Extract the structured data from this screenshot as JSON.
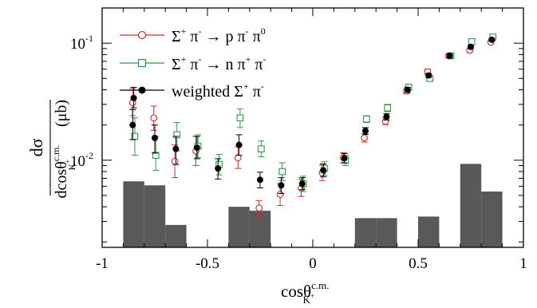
{
  "chart_data": {
    "type": "scatter",
    "xlim": [
      -1,
      1
    ],
    "ylim": [
      0.0018,
      0.2
    ],
    "yscale": "log",
    "xticks": [
      {
        "v": -1,
        "label": "-1"
      },
      {
        "v": -0.5,
        "label": "-0.5"
      },
      {
        "v": 0,
        "label": "0"
      },
      {
        "v": 0.5,
        "label": "0.5"
      },
      {
        "v": 1,
        "label": "1"
      }
    ],
    "yticks": [
      {
        "v": 0.01,
        "base": "10",
        "exp": "-2"
      },
      {
        "v": 0.1,
        "base": "10",
        "exp": "-1"
      }
    ],
    "xlabel": {
      "main": "cosθ",
      "sup": "c.m.",
      "sub": "K",
      "subsup": "+"
    },
    "ylabel": {
      "num": "dσ",
      "den": "dcosθ",
      "sup": "c.m.",
      "sub": "K",
      "subsup": "+",
      "unit": "(μb)"
    },
    "legend_position": "top-right",
    "colors": {
      "red": "#d42a2a",
      "green": "#2a9a4a",
      "black": "#000000",
      "bars": "#595959"
    },
    "series": [
      {
        "name": "Σ⁺ π⁻ → p π⁻ π⁰",
        "legend": {
          "a": "Σ",
          "a_sup": "+",
          "b": " π",
          "b_sup": "-",
          "c": " → p π",
          "c_sup": "-",
          "d": " π",
          "d_sup": "0"
        },
        "marker": "open-circle",
        "color": "#d42a2a",
        "points": [
          {
            "x": -0.855,
            "y": 0.031,
            "lo": 0.024,
            "hi": 0.041
          },
          {
            "x": -0.755,
            "y": 0.023,
            "lo": 0.018,
            "hi": 0.029
          },
          {
            "x": -0.655,
            "y": 0.0098,
            "lo": 0.0071,
            "hi": 0.0135
          },
          {
            "x": -0.555,
            "y": 0.012,
            "lo": 0.009,
            "hi": 0.016
          },
          {
            "x": -0.355,
            "y": 0.0105,
            "lo": 0.0085,
            "hi": 0.013
          },
          {
            "x": -0.255,
            "y": 0.0039,
            "lo": 0.0033,
            "hi": 0.0045
          },
          {
            "x": -0.155,
            "y": 0.0051,
            "lo": 0.0041,
            "hi": 0.0063
          },
          {
            "x": -0.055,
            "y": 0.0058,
            "lo": 0.0049,
            "hi": 0.0069
          },
          {
            "x": 0.045,
            "y": 0.0078,
            "lo": 0.0067,
            "hi": 0.0091
          },
          {
            "x": 0.145,
            "y": 0.0105,
            "lo": 0.0095,
            "hi": 0.0116
          },
          {
            "x": 0.245,
            "y": 0.0155,
            "lo": 0.0143,
            "hi": 0.0168
          },
          {
            "x": 0.345,
            "y": 0.0215,
            "lo": 0.0201,
            "hi": 0.023
          },
          {
            "x": 0.445,
            "y": 0.039,
            "lo": 0.037,
            "hi": 0.041
          },
          {
            "x": 0.545,
            "y": 0.057,
            "lo": 0.054,
            "hi": 0.06
          },
          {
            "x": 0.645,
            "y": 0.078,
            "lo": 0.075,
            "hi": 0.081
          },
          {
            "x": 0.745,
            "y": 0.087,
            "lo": 0.084,
            "hi": 0.09
          },
          {
            "x": 0.845,
            "y": 0.102,
            "lo": 0.099,
            "hi": 0.105
          }
        ]
      },
      {
        "name": "Σ⁺ π⁻ → n π⁺ π⁻",
        "legend": {
          "a": "Σ",
          "a_sup": "+",
          "b": " π",
          "b_sup": "-",
          "c": " → n π",
          "c_sup": "+",
          "d": " π",
          "d_sup": "-"
        },
        "marker": "open-square",
        "color": "#2a9a4a",
        "points": [
          {
            "x": -0.845,
            "y": 0.016,
            "lo": 0.011,
            "hi": 0.023
          },
          {
            "x": -0.745,
            "y": 0.011,
            "lo": 0.0082,
            "hi": 0.016
          },
          {
            "x": -0.645,
            "y": 0.0165,
            "lo": 0.012,
            "hi": 0.021
          },
          {
            "x": -0.545,
            "y": 0.0132,
            "lo": 0.0105,
            "hi": 0.0165
          },
          {
            "x": -0.445,
            "y": 0.0092,
            "lo": 0.0075,
            "hi": 0.0112
          },
          {
            "x": -0.345,
            "y": 0.023,
            "lo": 0.019,
            "hi": 0.0275
          },
          {
            "x": -0.245,
            "y": 0.0125,
            "lo": 0.0107,
            "hi": 0.0146
          },
          {
            "x": -0.145,
            "y": 0.008,
            "lo": 0.0067,
            "hi": 0.0095
          },
          {
            "x": -0.045,
            "y": 0.0063,
            "lo": 0.0054,
            "hi": 0.0073
          },
          {
            "x": 0.055,
            "y": 0.0085,
            "lo": 0.0074,
            "hi": 0.0097
          },
          {
            "x": 0.155,
            "y": 0.01,
            "lo": 0.009,
            "hi": 0.011
          },
          {
            "x": 0.255,
            "y": 0.0225,
            "lo": 0.021,
            "hi": 0.024
          },
          {
            "x": 0.355,
            "y": 0.028,
            "lo": 0.026,
            "hi": 0.03
          },
          {
            "x": 0.455,
            "y": 0.042,
            "lo": 0.04,
            "hi": 0.044
          },
          {
            "x": 0.555,
            "y": 0.05,
            "lo": 0.048,
            "hi": 0.052
          },
          {
            "x": 0.655,
            "y": 0.078,
            "lo": 0.075,
            "hi": 0.081
          },
          {
            "x": 0.755,
            "y": 0.103,
            "lo": 0.1,
            "hi": 0.106
          },
          {
            "x": 0.855,
            "y": 0.113,
            "lo": 0.11,
            "hi": 0.116
          }
        ]
      },
      {
        "name": "weighted Σ⁺ π⁻",
        "legend": {
          "a": "weighted Σ",
          "a_sup": "+",
          "b": " π",
          "b_sup": "-",
          "c": "",
          "c_sup": "",
          "d": "",
          "d_sup": ""
        },
        "marker": "filled-circle",
        "color": "#000000",
        "points": [
          {
            "x": -0.85,
            "y": 0.034,
            "lo": 0.028,
            "hi": 0.042
          },
          {
            "x": -0.855,
            "y": 0.02,
            "lo": 0.015,
            "hi": 0.027
          },
          {
            "x": -0.75,
            "y": 0.0155,
            "lo": 0.0115,
            "hi": 0.02
          },
          {
            "x": -0.65,
            "y": 0.0125,
            "lo": 0.0092,
            "hi": 0.016
          },
          {
            "x": -0.55,
            "y": 0.0128,
            "lo": 0.0103,
            "hi": 0.016
          },
          {
            "x": -0.45,
            "y": 0.0085,
            "lo": 0.0069,
            "hi": 0.0103
          },
          {
            "x": -0.35,
            "y": 0.0135,
            "lo": 0.011,
            "hi": 0.0165
          },
          {
            "x": -0.25,
            "y": 0.0068,
            "lo": 0.0058,
            "hi": 0.0079
          },
          {
            "x": -0.15,
            "y": 0.0061,
            "lo": 0.0052,
            "hi": 0.0071
          },
          {
            "x": -0.05,
            "y": 0.0063,
            "lo": 0.0056,
            "hi": 0.0071
          },
          {
            "x": 0.05,
            "y": 0.0082,
            "lo": 0.0072,
            "hi": 0.0093
          },
          {
            "x": 0.15,
            "y": 0.0104,
            "lo": 0.0095,
            "hi": 0.0114
          },
          {
            "x": 0.25,
            "y": 0.0178,
            "lo": 0.0166,
            "hi": 0.019
          },
          {
            "x": 0.35,
            "y": 0.0235,
            "lo": 0.022,
            "hi": 0.025
          },
          {
            "x": 0.45,
            "y": 0.04,
            "lo": 0.038,
            "hi": 0.042
          },
          {
            "x": 0.55,
            "y": 0.053,
            "lo": 0.051,
            "hi": 0.055
          },
          {
            "x": 0.65,
            "y": 0.078,
            "lo": 0.075,
            "hi": 0.081
          },
          {
            "x": 0.75,
            "y": 0.093,
            "lo": 0.09,
            "hi": 0.096
          },
          {
            "x": 0.85,
            "y": 0.107,
            "lo": 0.104,
            "hi": 0.11
          }
        ]
      }
    ],
    "histogram": [
      {
        "x0": -0.9,
        "x1": -0.8,
        "y": 0.0066
      },
      {
        "x0": -0.8,
        "x1": -0.7,
        "y": 0.0061
      },
      {
        "x0": -0.7,
        "x1": -0.6,
        "y": 0.0028
      },
      {
        "x0": -0.4,
        "x1": -0.3,
        "y": 0.004
      },
      {
        "x0": -0.3,
        "x1": -0.2,
        "y": 0.0037
      },
      {
        "x0": 0.2,
        "x1": 0.3,
        "y": 0.0032
      },
      {
        "x0": 0.3,
        "x1": 0.4,
        "y": 0.0032
      },
      {
        "x0": 0.5,
        "x1": 0.6,
        "y": 0.0033
      },
      {
        "x0": 0.7,
        "x1": 0.8,
        "y": 0.0093
      },
      {
        "x0": 0.8,
        "x1": 0.9,
        "y": 0.0054
      }
    ]
  }
}
